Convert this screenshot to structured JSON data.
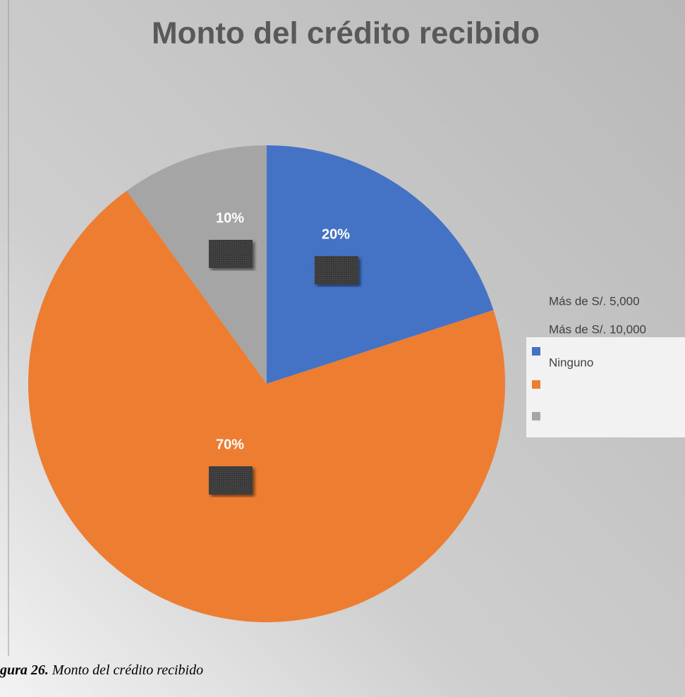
{
  "chart_data": {
    "type": "pie",
    "title": "Monto del crédito recibido",
    "categories": [
      "Más de S/. 5,000",
      "Más de S/. 10,000",
      "Ninguno"
    ],
    "values": [
      20,
      70,
      10
    ],
    "value_labels": [
      "20%",
      "70%",
      "10%"
    ],
    "colors": [
      "#4472c4",
      "#ed7d31",
      "#a5a5a5"
    ],
    "legend": "right"
  },
  "caption": {
    "label": "gura 26.",
    "text": "Monto del crédito recibido"
  }
}
